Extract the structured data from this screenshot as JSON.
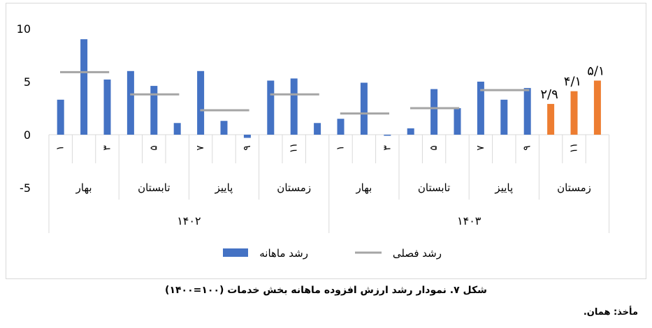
{
  "chart_data": {
    "type": "bar",
    "title": "",
    "xlabel": "",
    "ylabel": "",
    "ylim": [
      -5,
      10
    ],
    "yticks": [
      "10",
      "5",
      "0",
      "-5"
    ],
    "grid": false,
    "legend_position": "bottom",
    "years": [
      {
        "label": "۱۴۰۲",
        "seasons": [
          {
            "label": "بهار",
            "months": [
              "۱",
              "",
              "۳"
            ],
            "monthly": [
              3.3,
              9.0,
              5.2
            ],
            "seasonal": 5.9
          },
          {
            "label": "تابستان",
            "months": [
              "",
              "۵",
              ""
            ],
            "monthly": [
              6.0,
              4.6,
              1.1
            ],
            "seasonal": 3.8
          },
          {
            "label": "پاییز",
            "months": [
              "۷",
              "",
              "۹"
            ],
            "monthly": [
              6.0,
              1.3,
              -0.3
            ],
            "seasonal": 2.3
          },
          {
            "label": "زمستان",
            "months": [
              "",
              "۱۱",
              ""
            ],
            "monthly": [
              5.1,
              5.3,
              1.1
            ],
            "seasonal": 3.8
          }
        ]
      },
      {
        "label": "۱۴۰۳",
        "seasons": [
          {
            "label": "بهار",
            "months": [
              "۱",
              "",
              "۳"
            ],
            "monthly": [
              1.5,
              4.9,
              -0.1
            ],
            "seasonal": 2.0
          },
          {
            "label": "تابستان",
            "months": [
              "",
              "۵",
              ""
            ],
            "monthly": [
              0.6,
              4.3,
              2.5
            ],
            "seasonal": 2.5
          },
          {
            "label": "پاییز",
            "months": [
              "۷",
              "",
              "۹"
            ],
            "monthly": [
              5.0,
              3.3,
              4.4
            ],
            "seasonal": 4.2
          },
          {
            "label": "زمستان",
            "months": [
              "",
              "۱۱",
              ""
            ],
            "monthly": [
              2.9,
              4.1,
              5.1
            ],
            "seasonal": null,
            "highlight": true,
            "data_labels": [
              "۲/۹",
              "۴/۱",
              "۵/۱"
            ]
          }
        ]
      }
    ],
    "series": [
      {
        "name": "رشد ماهانه",
        "kind": "bar",
        "color": "#4472c4"
      },
      {
        "name": "رشد فصلی",
        "kind": "line",
        "color": "#a5a5a5"
      }
    ],
    "highlight_color": "#ed7d31"
  },
  "caption": "شکل ۷. نمودار رشد ارزش افزوده ماهانه بخش خدمات (۱۰۰=۱۴۰۰)",
  "source": "مأخذ: همان."
}
